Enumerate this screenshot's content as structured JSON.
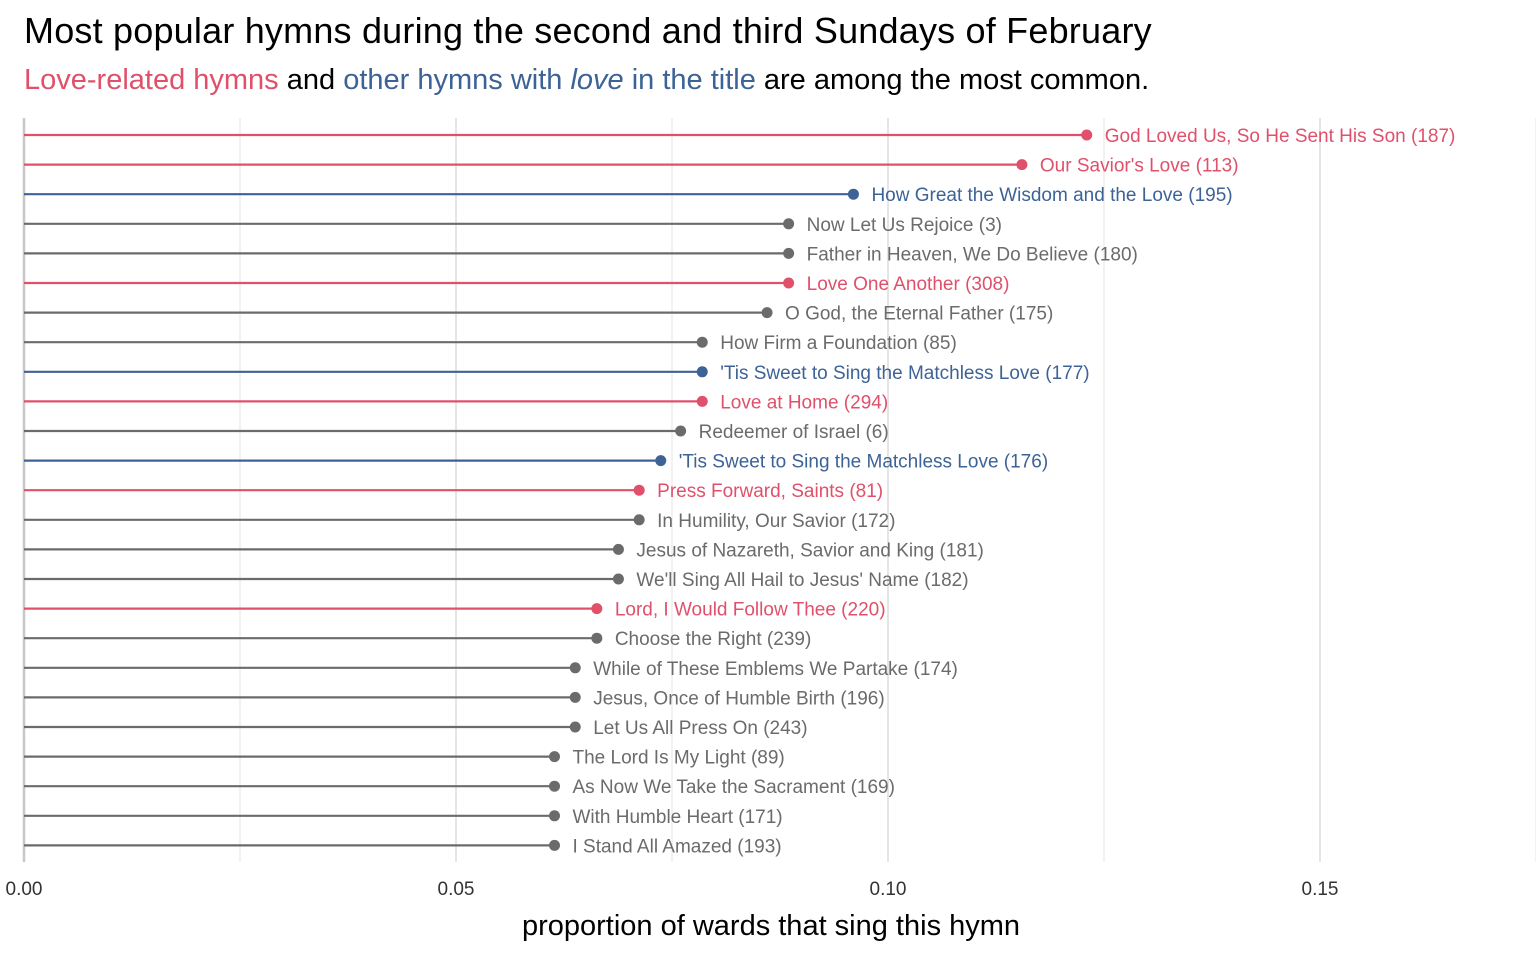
{
  "title": "Most popular hymns during the second and third Sundays of February",
  "subtitle": {
    "love_related": "Love-related hymns",
    "and": " and ",
    "other_prefix": "other hymns with ",
    "other_em": "love",
    "other_suffix": " in the title",
    "rest": " are among the most common."
  },
  "colors": {
    "love_related": "#e0506b",
    "love_title": "#3d6396",
    "other": "#6b6b6b",
    "grid": "#e5e5e5"
  },
  "chart_data": {
    "type": "lollipop",
    "xlabel": "proportion of wards that sing this hymn",
    "xlim": [
      0,
      0.172
    ],
    "xticks": [
      0.0,
      0.05,
      0.1,
      0.15
    ],
    "xtick_labels": [
      "0.00",
      "0.05",
      "0.10",
      "0.15"
    ],
    "grid": true,
    "items": [
      {
        "label": "God Loved Us, So He Sent His Son (187)",
        "value": 0.123,
        "group": "love_related"
      },
      {
        "label": "Our Savior's Love (113)",
        "value": 0.1155,
        "group": "love_related"
      },
      {
        "label": "How Great the Wisdom and the Love (195)",
        "value": 0.096,
        "group": "love_title"
      },
      {
        "label": "Now Let Us Rejoice (3)",
        "value": 0.0885,
        "group": "other"
      },
      {
        "label": "Father in Heaven, We Do Believe (180)",
        "value": 0.0885,
        "group": "other"
      },
      {
        "label": "Love One Another (308)",
        "value": 0.0885,
        "group": "love_related"
      },
      {
        "label": "O God, the Eternal Father (175)",
        "value": 0.086,
        "group": "other"
      },
      {
        "label": "How Firm a Foundation (85)",
        "value": 0.0785,
        "group": "other"
      },
      {
        "label": "'Tis Sweet to Sing the Matchless Love (177)",
        "value": 0.0785,
        "group": "love_title"
      },
      {
        "label": "Love at Home (294)",
        "value": 0.0785,
        "group": "love_related"
      },
      {
        "label": "Redeemer of Israel (6)",
        "value": 0.076,
        "group": "other"
      },
      {
        "label": "'Tis Sweet to Sing the Matchless Love (176)",
        "value": 0.0737,
        "group": "love_title"
      },
      {
        "label": "Press Forward, Saints (81)",
        "value": 0.0712,
        "group": "love_related"
      },
      {
        "label": "In Humility, Our Savior (172)",
        "value": 0.0712,
        "group": "other"
      },
      {
        "label": "Jesus of Nazareth, Savior and King (181)",
        "value": 0.0688,
        "group": "other"
      },
      {
        "label": "We'll Sing All Hail to Jesus' Name (182)",
        "value": 0.0688,
        "group": "other"
      },
      {
        "label": "Lord, I Would Follow Thee (220)",
        "value": 0.0663,
        "group": "love_related"
      },
      {
        "label": "Choose the Right (239)",
        "value": 0.0663,
        "group": "other"
      },
      {
        "label": "While of These Emblems We Partake (174)",
        "value": 0.0638,
        "group": "other"
      },
      {
        "label": "Jesus, Once of Humble Birth (196)",
        "value": 0.0638,
        "group": "other"
      },
      {
        "label": "Let Us All Press On (243)",
        "value": 0.0638,
        "group": "other"
      },
      {
        "label": "The Lord Is My Light (89)",
        "value": 0.0614,
        "group": "other"
      },
      {
        "label": "As Now We Take the Sacrament (169)",
        "value": 0.0614,
        "group": "other"
      },
      {
        "label": "With Humble Heart (171)",
        "value": 0.0614,
        "group": "other"
      },
      {
        "label": "I Stand All Amazed (193)",
        "value": 0.0614,
        "group": "other"
      }
    ]
  }
}
